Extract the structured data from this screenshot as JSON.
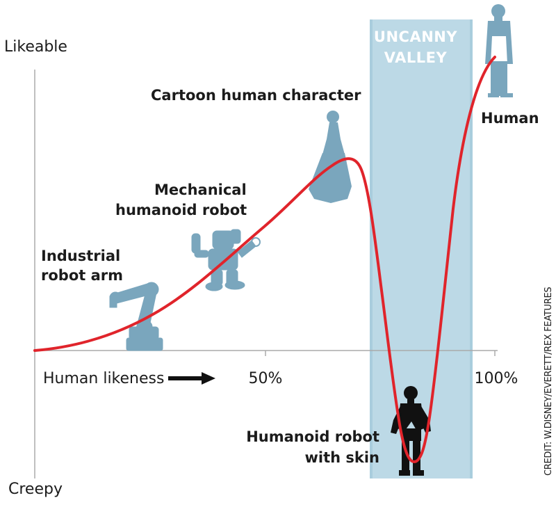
{
  "axis": {
    "y_top_label": "Likeable",
    "y_bottom_label": "Creepy",
    "x_label": "Human likeness",
    "x_ticks": [
      "50%",
      "100%"
    ]
  },
  "valley": {
    "title_line1": "UNCANNY",
    "title_line2": "VALLEY"
  },
  "stages": {
    "industrial": {
      "line1": "Industrial",
      "line2": "robot arm"
    },
    "mechanical": {
      "line1": "Mechanical",
      "line2": "humanoid robot"
    },
    "cartoon": {
      "line1": "Cartoon human character"
    },
    "human": {
      "line1": "Human"
    },
    "humanoid_skin": {
      "line1": "Humanoid robot",
      "line2": "with skin"
    }
  },
  "credit": "CREDIT: W.DISNEY/EVERETT/REX FEATURES",
  "colors": {
    "curve": "#e0242b",
    "valley_band": "#bcd9e6",
    "valley_band_edge": "#a9cddd",
    "figure_blue": "#7aa6bd",
    "figure_dark": "#111111",
    "axis": "#aaaaaa"
  },
  "chart_data": {
    "type": "line",
    "curve_shape": "uncanny-valley",
    "x_ticks": [
      "50%",
      "100%"
    ]
  }
}
